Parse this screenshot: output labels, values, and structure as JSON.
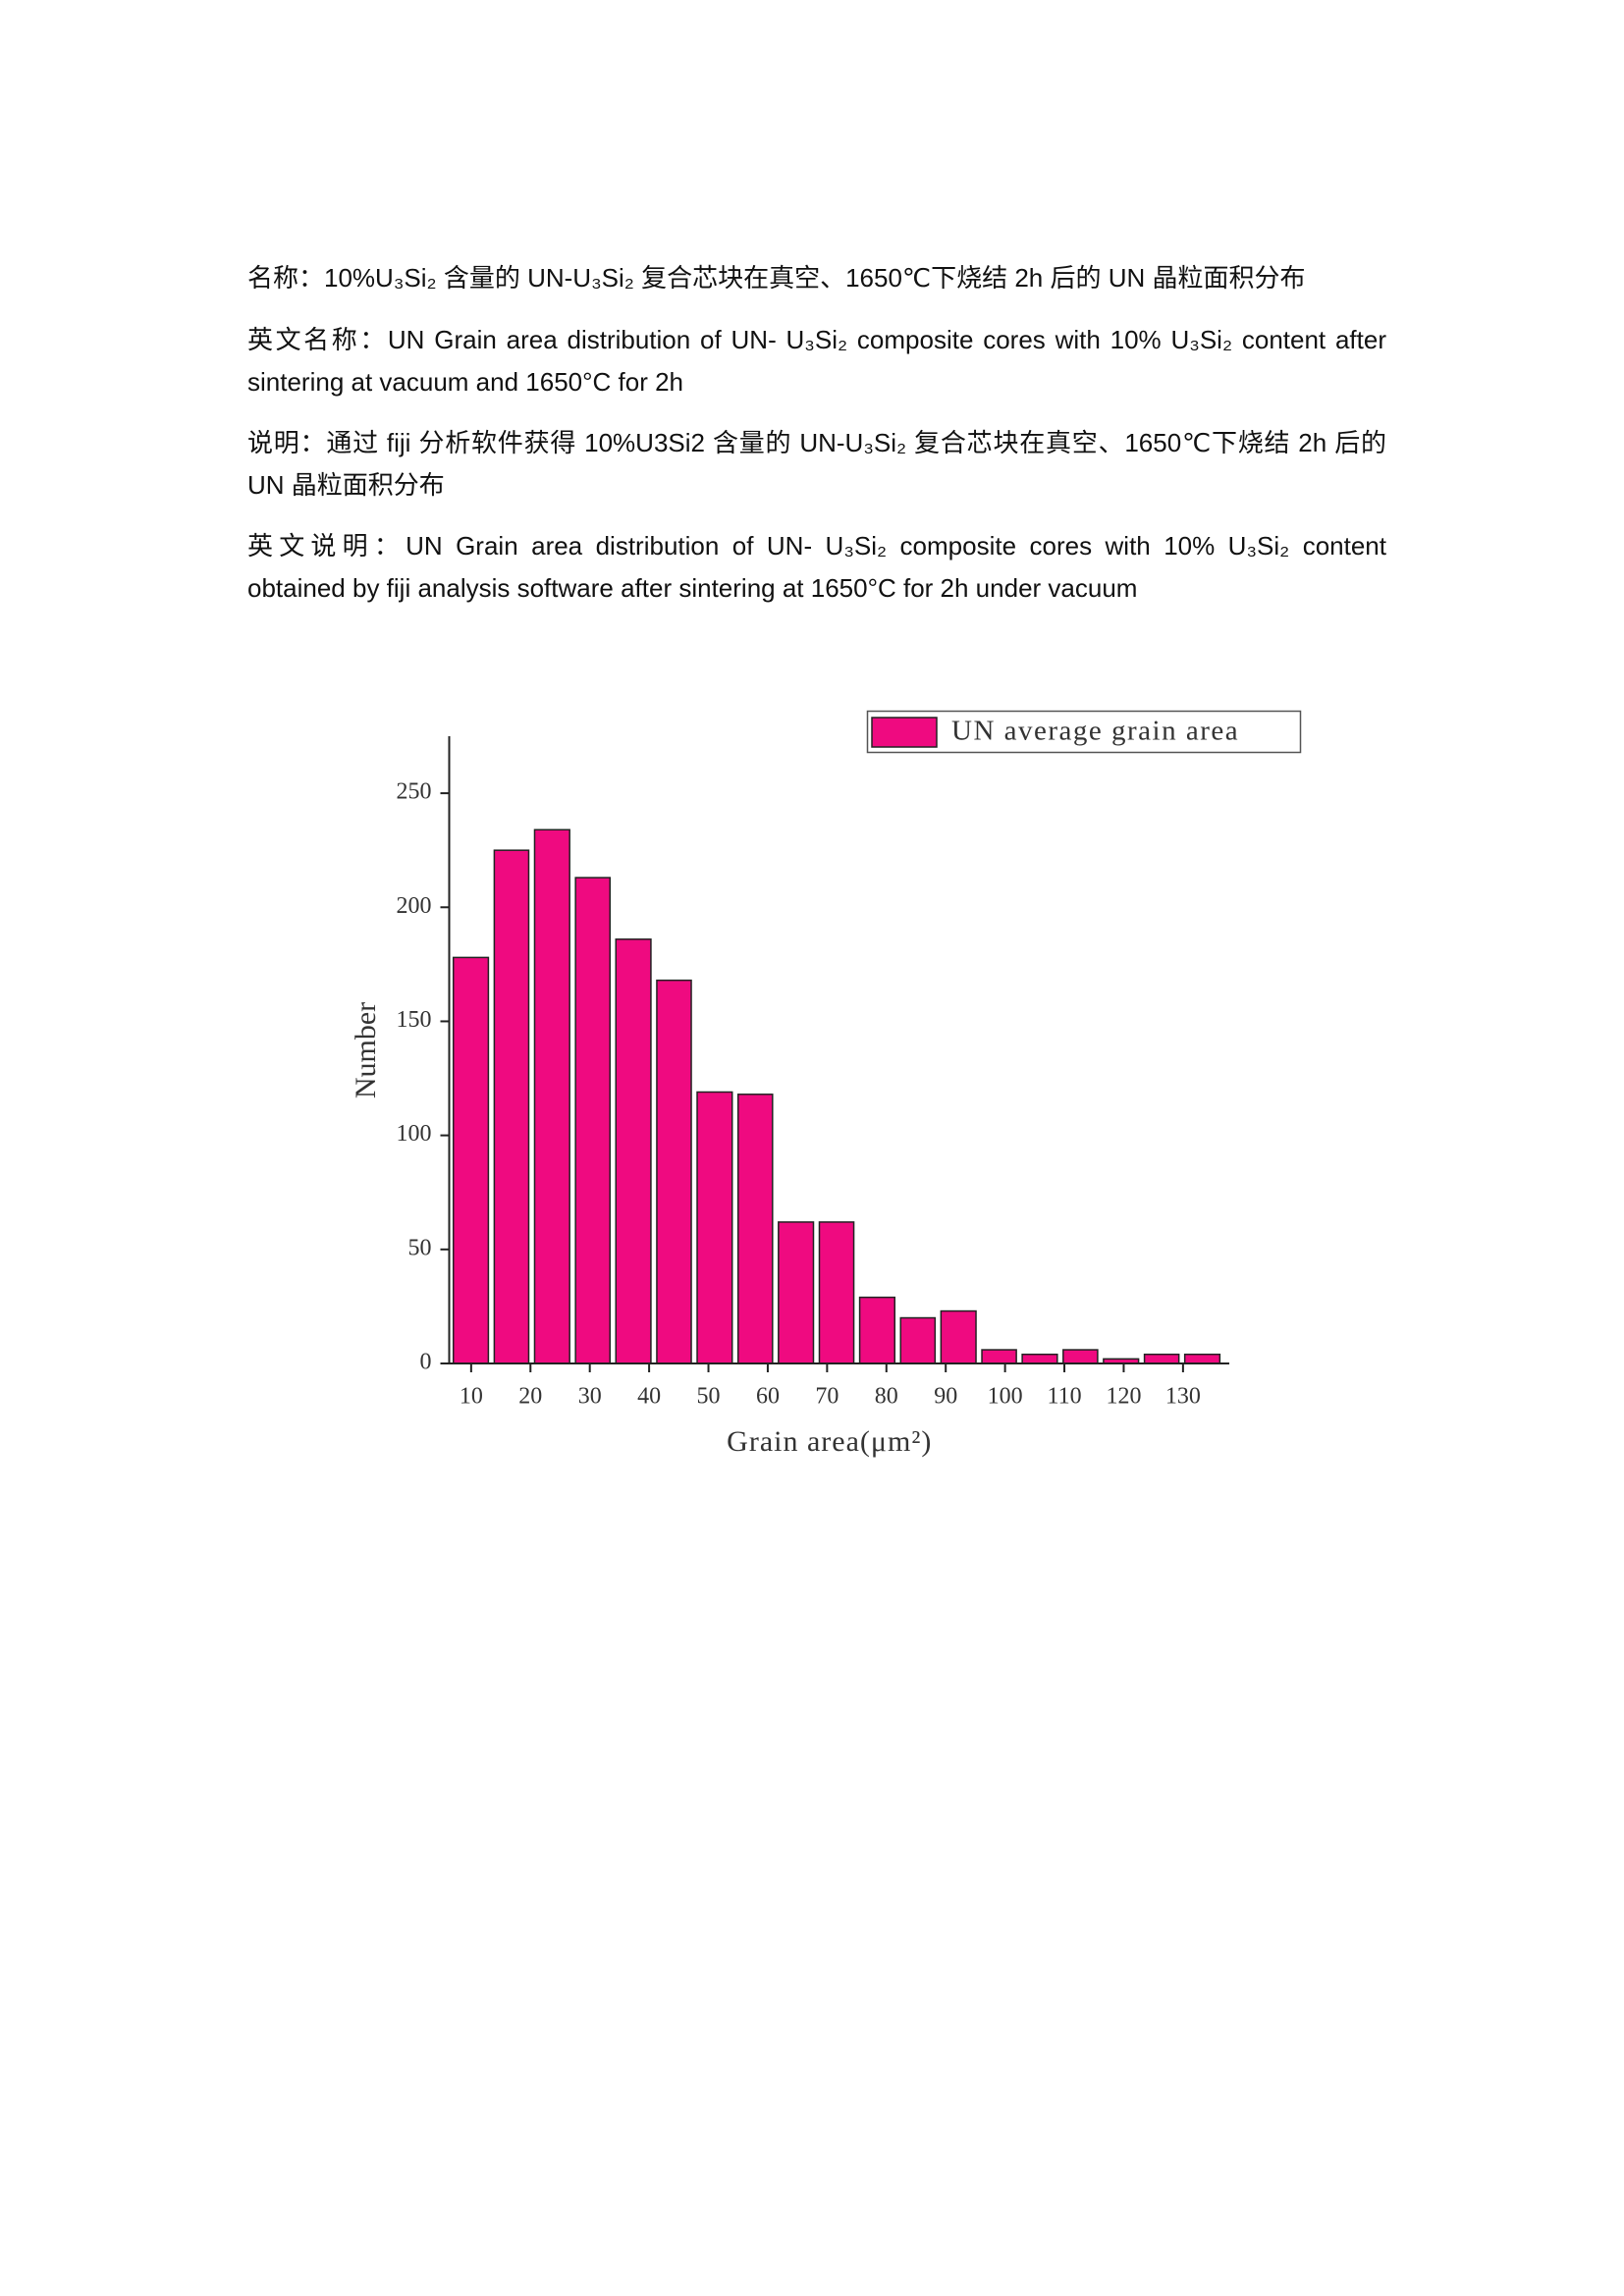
{
  "document": {
    "paragraphs": [
      {
        "label": "名称：",
        "text": "10%U₃Si₂ 含量的 UN-U₃Si₂ 复合芯块在真空、1650℃下烧结 2h 后的 UN 晶粒面积分布"
      },
      {
        "label": "英文名称：",
        "text": "UN Grain area distribution of UN- U₃Si₂    composite cores with 10% U₃Si₂ content after sintering at vacuum and 1650°C for 2h"
      },
      {
        "label": "说明：",
        "text": "通过 fiji 分析软件获得 10%U3Si2 含量的 UN-U₃Si₂ 复合芯块在真空、1650℃下烧结 2h 后的 UN 晶粒面积分布"
      },
      {
        "label": "英文说明：",
        "text": "UN Grain area distribution of UN- U₃Si₂ composite cores with 10% U₃Si₂ content obtained by fiji analysis software after sintering at 1650°C for 2h under vacuum"
      }
    ]
  },
  "chart_data": {
    "type": "histogram",
    "x_label": "Grain area(μm²)",
    "y_label": "Number",
    "bins": [
      6.5,
      13.4,
      20.2,
      27.1,
      33.9,
      40.8,
      47.6,
      54.5,
      61.3,
      68.2,
      75.0,
      81.9,
      88.7,
      95.6,
      102.4,
      109.3,
      116.1,
      123.0,
      129.8,
      136.7
    ],
    "series": [
      {
        "name": "UN average grain area",
        "color": "#ef0a80",
        "values": [
          178,
          225,
          234,
          213,
          186,
          168,
          119,
          118,
          62,
          62,
          29,
          20,
          23,
          6,
          4,
          6,
          2,
          4,
          4
        ]
      }
    ],
    "xlim": [
      6.3,
      137.8
    ],
    "xticks": [
      10,
      20,
      30,
      40,
      50,
      60,
      70,
      80,
      90,
      100,
      110,
      120,
      130
    ],
    "ylim": [
      0,
      275
    ],
    "yticks": [
      0,
      50,
      100,
      150,
      200,
      250
    ],
    "legend": "top-right"
  }
}
